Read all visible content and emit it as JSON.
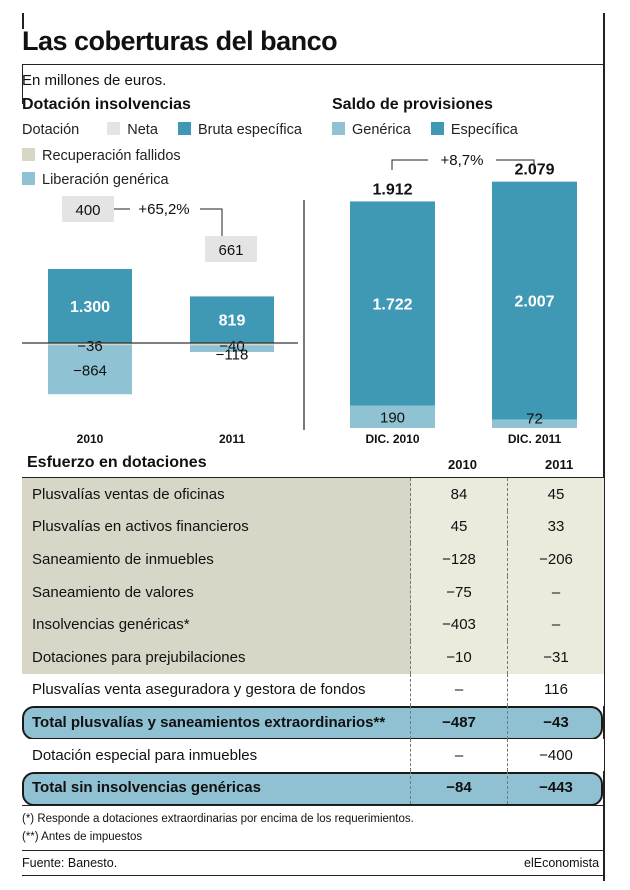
{
  "header": {
    "title": "Las coberturas del banco",
    "subtitle": "En millones de euros."
  },
  "colors": {
    "neta": "#e4e4e4",
    "bruta_especifica": "#3f98b4",
    "recuperacion_fallidos": "#d8d6c6",
    "liberacion_generica": "#8fc3d3",
    "generica": "#8fc3d3",
    "especifica": "#3f98b4",
    "total_row": "#8fc1d3"
  },
  "chart_data": [
    {
      "type": "bar",
      "title": "Dotación insolvencias",
      "legend_label": "Dotación",
      "categories": [
        "2010",
        "2011"
      ],
      "series": [
        {
          "name": "Neta",
          "values": [
            400,
            661
          ]
        },
        {
          "name": "Bruta específica",
          "values": [
            1300,
            819
          ]
        },
        {
          "name": "Recuperación fallidos",
          "values": [
            -36,
            -40
          ]
        },
        {
          "name": "Liberación genérica",
          "values": [
            -864,
            -118
          ]
        }
      ],
      "labels": {
        "neta": [
          "400",
          "661"
        ],
        "bruta": [
          "1.300",
          "819"
        ],
        "recuperacion": [
          "−36",
          "−40"
        ],
        "liberacion": [
          "−864",
          "−118"
        ]
      },
      "annotation": "+65,2%"
    },
    {
      "type": "bar",
      "title": "Saldo de provisiones",
      "categories": [
        "DIC. 2010",
        "DIC. 2011"
      ],
      "series": [
        {
          "name": "Genérica",
          "values": [
            190,
            72
          ]
        },
        {
          "name": "Específica",
          "values": [
            1722,
            2007
          ]
        }
      ],
      "totals": [
        1912,
        2079
      ],
      "labels": {
        "totals": [
          "1.912",
          "2.079"
        ],
        "especifica": [
          "1.722",
          "2.007"
        ],
        "generica": [
          "190",
          "72"
        ]
      },
      "annotation": "+8,7%"
    },
    {
      "type": "table",
      "title": "Esfuerzo en dotaciones",
      "columns": [
        "2010",
        "2011"
      ],
      "rows": [
        {
          "label": "Plusvalías ventas de oficinas",
          "v2010": "84",
          "v2011": "45",
          "style": "shade"
        },
        {
          "label": "Plusvalías en activos financieros",
          "v2010": "45",
          "v2011": "33",
          "style": "shade"
        },
        {
          "label": "Saneamiento de inmuebles",
          "v2010": "−128",
          "v2011": "−206",
          "style": "shade"
        },
        {
          "label": "Saneamiento de valores",
          "v2010": "−75",
          "v2011": "–",
          "style": "shade"
        },
        {
          "label": "Insolvencias genéricas*",
          "v2010": "−403",
          "v2011": "–",
          "style": "shade"
        },
        {
          "label": "Dotaciones para prejubilaciones",
          "v2010": "−10",
          "v2011": "−31",
          "style": "shade"
        },
        {
          "label": "Plusvalías venta aseguradora y gestora de fondos",
          "v2010": "–",
          "v2011": "116",
          "style": "plain"
        },
        {
          "label": "Total plusvalías y saneamientos extraordinarios**",
          "v2010": "−487",
          "v2011": "−43",
          "style": "total"
        },
        {
          "label": "Dotación especial para inmuebles",
          "v2010": "–",
          "v2011": "−400",
          "style": "plain"
        },
        {
          "label": "Total sin insolvencias genéricas",
          "v2010": "−84",
          "v2011": "−443",
          "style": "total"
        }
      ]
    }
  ],
  "footnotes": {
    "note1": "(*) Responde a dotaciones extraordinarias por encima de los requerimientos.",
    "note2": "(**) Antes de impuestos",
    "source": "Fuente: Banesto.",
    "brand": "elEconomista"
  }
}
